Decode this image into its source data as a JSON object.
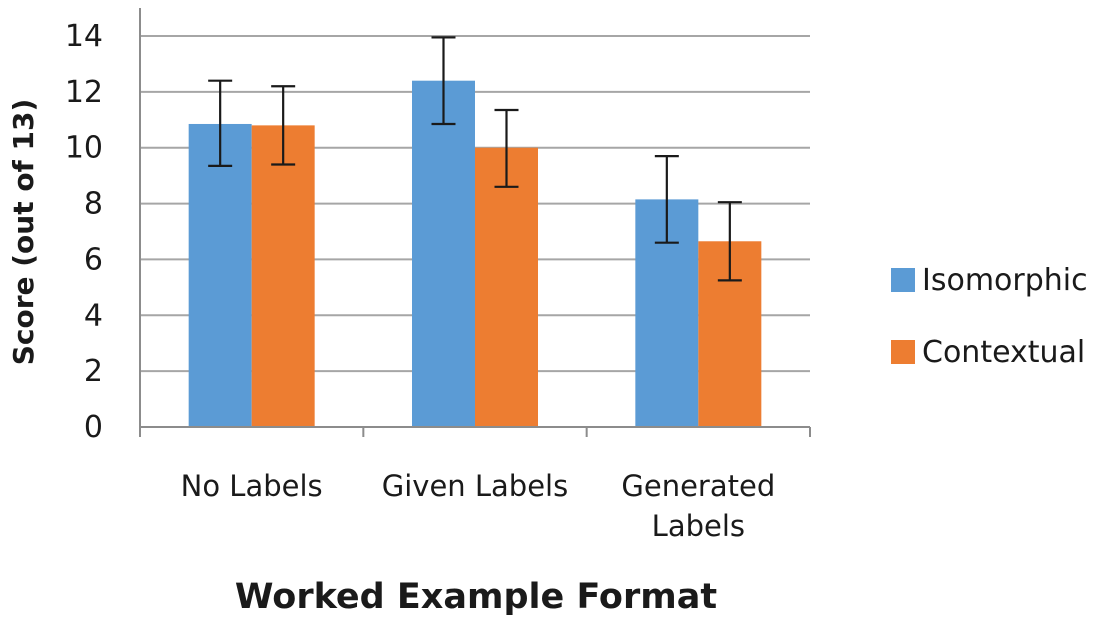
{
  "chart_data": {
    "type": "bar",
    "title": "",
    "xlabel": "Worked Example Format",
    "ylabel": "Score (out of 13)",
    "categories": [
      [
        "No Labels"
      ],
      [
        "Given Labels"
      ],
      [
        "Generated",
        "Labels"
      ]
    ],
    "series": [
      {
        "name": "Isomorphic",
        "color": "#5b9bd5",
        "values": [
          10.85,
          12.4,
          8.15
        ],
        "err_low": [
          9.35,
          10.85,
          6.6
        ],
        "err_high": [
          12.4,
          13.95,
          9.7
        ]
      },
      {
        "name": "Contextual",
        "color": "#ed7d31",
        "values": [
          10.8,
          10.0,
          6.65
        ],
        "err_low": [
          9.4,
          8.6,
          5.25
        ],
        "err_high": [
          12.2,
          11.35,
          8.05
        ]
      }
    ],
    "ylim": [
      0,
      14
    ],
    "yticks": [
      0,
      2,
      4,
      6,
      8,
      10,
      12,
      14
    ],
    "grid": true,
    "legend": "right"
  }
}
